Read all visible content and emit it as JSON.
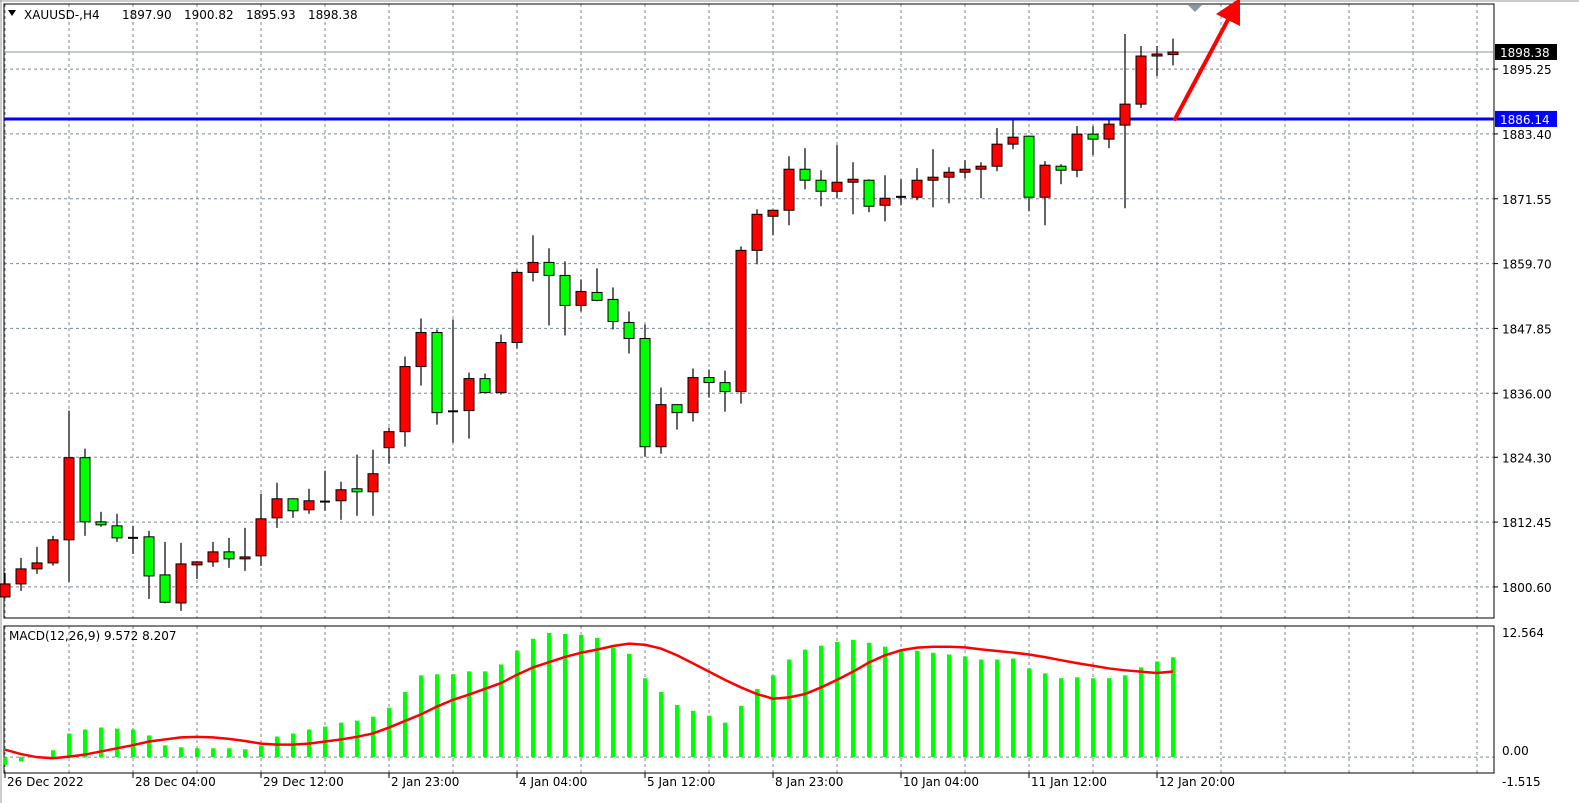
{
  "header": {
    "collapse_icon": "triangle-down-icon",
    "symbol": "XAUUSD-,H4",
    "open": "1897.90",
    "high": "1900.82",
    "low": "1895.93",
    "close": "1898.38"
  },
  "colors": {
    "bull_candle": "#ff0000",
    "bear_candle": "#00ff00",
    "candle_outline": "#000000",
    "grid": "#7a8699",
    "level_line": "#0000ff",
    "bid_line": "#8a96a6",
    "macd_histogram": "#00ff00",
    "macd_signal": "#ff0000",
    "arrow": "#ff0000"
  },
  "price_axis": {
    "range": [
      1794.92,
      1907.15
    ],
    "ticks": [
      "1895.25",
      "1883.40",
      "1871.55",
      "1859.70",
      "1847.85",
      "1836.00",
      "1824.30",
      "1812.45",
      "1800.60"
    ],
    "bid_label": "1898.38",
    "level_label": "1886.14"
  },
  "macd": {
    "label": "MACD(12,26,9) 9.572 8.207",
    "ticks": [
      "12.564",
      "0.00",
      "-1.515"
    ],
    "range": [
      -1.515,
      12.564
    ]
  },
  "time_axis": {
    "labels": [
      "26 Dec 2022",
      "28 Dec 04:00",
      "29 Dec 12:00",
      "2 Jan 23:00",
      "4 Jan 04:00",
      "5 Jan 12:00",
      "8 Jan 23:00",
      "10 Jan 04:00",
      "11 Jan 12:00",
      "12 Jan 20:00"
    ]
  },
  "chart_data": [
    {
      "type": "candlestick",
      "symbol": "XAUUSD-",
      "timeframe": "H4",
      "grid": true,
      "ylim": [
        1794.92,
        1907.15
      ],
      "horizontal_level": 1886.14,
      "bid": 1898.38,
      "annotation": "red up arrow",
      "ohlc": [
        [
          1798.77,
          1803.16,
          1798.59,
          1801.15
        ],
        [
          1801.15,
          1805.91,
          1799.87,
          1803.9
        ],
        [
          1803.9,
          1807.92,
          1802.98,
          1804.99
        ],
        [
          1804.99,
          1809.94,
          1804.5,
          1809.21
        ],
        [
          1809.21,
          1832.83,
          1801.52,
          1824.22
        ],
        [
          1824.22,
          1825.87,
          1809.94,
          1812.5
        ],
        [
          1812.5,
          1814.33,
          1811.59,
          1811.95
        ],
        [
          1811.77,
          1813.97,
          1808.84,
          1809.57
        ],
        [
          1809.57,
          1811.77,
          1806.64,
          1809.4
        ],
        [
          1809.76,
          1810.85,
          1798.4,
          1802.61
        ],
        [
          1802.8,
          1808.84,
          1797.6,
          1797.8
        ],
        [
          1797.67,
          1808.66,
          1796.21,
          1804.81
        ],
        [
          1804.63,
          1805.3,
          1802.06,
          1805.18
        ],
        [
          1805.18,
          1808.84,
          1804.26,
          1807.01
        ],
        [
          1807.01,
          1809.57,
          1804.08,
          1805.73
        ],
        [
          1805.73,
          1811.4,
          1803.53,
          1806.09
        ],
        [
          1806.28,
          1817.63,
          1804.45,
          1813.05
        ],
        [
          1813.23,
          1819.64,
          1811.4,
          1816.71
        ],
        [
          1816.71,
          1816.8,
          1813.23,
          1814.52
        ],
        [
          1814.7,
          1818.54,
          1813.97,
          1816.35
        ],
        [
          1816.16,
          1821.84,
          1814.52,
          1816.2
        ],
        [
          1816.35,
          1819.83,
          1812.87,
          1818.36
        ],
        [
          1818.54,
          1824.77,
          1813.6,
          1817.99
        ],
        [
          1817.99,
          1825.68,
          1813.6,
          1821.29
        ],
        [
          1826.05,
          1829.71,
          1823.12,
          1828.98
        ],
        [
          1828.98,
          1842.71,
          1826.23,
          1840.88
        ],
        [
          1840.88,
          1849.67,
          1837.4,
          1847.11
        ],
        [
          1847.11,
          1847.66,
          1830.26,
          1832.46
        ],
        [
          1832.64,
          1849.49,
          1826.97,
          1832.7
        ],
        [
          1832.83,
          1839.78,
          1827.7,
          1838.68
        ],
        [
          1838.68,
          1839.6,
          1836.0,
          1836.12
        ],
        [
          1836.12,
          1846.74,
          1835.76,
          1845.28
        ],
        [
          1845.28,
          1858.46,
          1844.18,
          1858.09
        ],
        [
          1858.09,
          1864.87,
          1856.45,
          1859.92
        ],
        [
          1859.92,
          1862.49,
          1848.39,
          1857.54
        ],
        [
          1857.54,
          1860.11,
          1846.56,
          1852.05
        ],
        [
          1852.05,
          1856.81,
          1850.95,
          1854.61
        ],
        [
          1854.43,
          1858.83,
          1852.8,
          1852.97
        ],
        [
          1853.15,
          1855.35,
          1847.66,
          1849.12
        ],
        [
          1848.94,
          1850.95,
          1843.26,
          1846.01
        ],
        [
          1846.01,
          1848.57,
          1824.4,
          1826.23
        ],
        [
          1826.23,
          1837.04,
          1824.95,
          1833.92
        ],
        [
          1833.92,
          1834.0,
          1829.35,
          1832.46
        ],
        [
          1832.46,
          1840.52,
          1830.81,
          1838.87
        ],
        [
          1838.87,
          1840.33,
          1835.21,
          1837.95
        ],
        [
          1837.95,
          1840.15,
          1832.64,
          1836.3
        ],
        [
          1836.3,
          1862.85,
          1834.11,
          1862.12
        ],
        [
          1862.12,
          1869.63,
          1859.56,
          1868.71
        ],
        [
          1868.35,
          1869.6,
          1864.87,
          1869.45
        ],
        [
          1869.45,
          1879.33,
          1866.7,
          1876.95
        ],
        [
          1876.95,
          1880.8,
          1873.29,
          1874.94
        ],
        [
          1874.94,
          1876.77,
          1870.18,
          1872.92
        ],
        [
          1872.92,
          1881.35,
          1871.64,
          1874.57
        ],
        [
          1874.57,
          1878.23,
          1868.71,
          1875.12
        ],
        [
          1874.94,
          1875.1,
          1869.08,
          1870.18
        ],
        [
          1870.36,
          1875.85,
          1867.43,
          1871.64
        ],
        [
          1871.83,
          1875.12,
          1870.36,
          1871.9
        ],
        [
          1871.83,
          1877.14,
          1871.28,
          1874.94
        ],
        [
          1874.94,
          1880.61,
          1869.99,
          1875.49
        ],
        [
          1875.49,
          1877.32,
          1870.73,
          1876.4
        ],
        [
          1876.4,
          1878.6,
          1875.3,
          1876.95
        ],
        [
          1876.95,
          1878.23,
          1871.64,
          1877.5
        ],
        [
          1877.5,
          1884.46,
          1876.59,
          1881.53
        ],
        [
          1881.53,
          1885.92,
          1880.61,
          1882.81
        ],
        [
          1882.99,
          1883.1,
          1869.26,
          1871.83
        ],
        [
          1871.83,
          1878.42,
          1866.7,
          1877.69
        ],
        [
          1877.5,
          1877.87,
          1874.21,
          1876.77
        ],
        [
          1876.77,
          1884.83,
          1875.49,
          1883.36
        ],
        [
          1883.36,
          1884.83,
          1879.52,
          1882.45
        ],
        [
          1882.45,
          1885.92,
          1880.8,
          1885.19
        ],
        [
          1885.01,
          1901.67,
          1869.81,
          1888.85
        ],
        [
          1888.85,
          1899.47,
          1888.12,
          1897.64
        ],
        [
          1897.64,
          1899.47,
          1893.98,
          1898.01
        ],
        [
          1897.9,
          1900.82,
          1895.93,
          1898.38
        ]
      ]
    },
    {
      "type": "bar",
      "indicator": "MACD(12,26,9)",
      "ylim": [
        -1.515,
        12.564
      ],
      "histogram": [
        -0.73,
        -0.4,
        0.1,
        0.66,
        2.27,
        2.65,
        2.84,
        2.74,
        2.65,
        2.08,
        1.13,
        0.95,
        0.85,
        0.85,
        0.85,
        0.76,
        1.13,
        1.98,
        2.27,
        2.65,
        2.93,
        3.31,
        3.5,
        3.87,
        4.73,
        6.24,
        7.84,
        7.94,
        7.94,
        8.22,
        8.22,
        8.88,
        10.2,
        11.34,
        11.9,
        11.8,
        11.7,
        11.43,
        10.5,
        9.9,
        7.56,
        6.24,
        5.0,
        4.44,
        3.97,
        3.31,
        4.91,
        6.52,
        7.84,
        9.35,
        10.3,
        10.68,
        11.05,
        11.24,
        10.96,
        10.58,
        10.2,
        10.2,
        10.0,
        9.83,
        9.64,
        9.35,
        9.35,
        9.45,
        8.5,
        8.03,
        7.56,
        7.65,
        7.56,
        7.56,
        7.84,
        8.6,
        9.17,
        9.572
      ],
      "signal": [
        0.72,
        0.3,
        0,
        -0.1,
        0.05,
        0.25,
        0.55,
        0.85,
        1.15,
        1.5,
        1.7,
        1.9,
        1.95,
        1.9,
        1.75,
        1.55,
        1.3,
        1.2,
        1.2,
        1.3,
        1.5,
        1.7,
        1.95,
        2.27,
        2.84,
        3.47,
        4.1,
        4.85,
        5.5,
        6.0,
        6.55,
        7.1,
        7.9,
        8.6,
        9.1,
        9.6,
        10.0,
        10.3,
        10.65,
        10.87,
        10.77,
        10.4,
        9.76,
        8.98,
        8.19,
        7.4,
        6.68,
        6.05,
        5.6,
        5.73,
        6.05,
        6.68,
        7.4,
        8.19,
        9.07,
        9.76,
        10.24,
        10.49,
        10.58,
        10.58,
        10.52,
        10.33,
        10.17,
        10.02,
        9.83,
        9.58,
        9.29,
        9.01,
        8.76,
        8.5,
        8.32,
        8.19,
        8.06,
        8.207
      ]
    }
  ]
}
